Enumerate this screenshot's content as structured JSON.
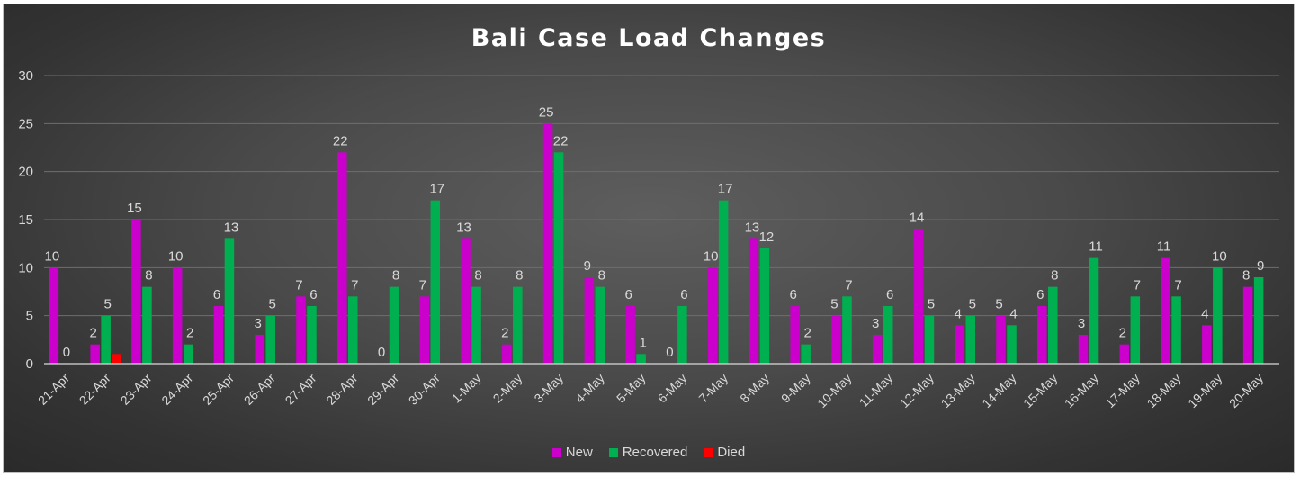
{
  "chart_data": {
    "type": "bar",
    "title": "Bali Case Load Changes",
    "xlabel": "",
    "ylabel": "",
    "ylim": [
      0,
      30
    ],
    "yticks": [
      0,
      5,
      10,
      15,
      20,
      25,
      30
    ],
    "grid": true,
    "legend_position": "bottom",
    "categories": [
      "21-Apr",
      "22-Apr",
      "23-Apr",
      "24-Apr",
      "25-Apr",
      "26-Apr",
      "27-Apr",
      "28-Apr",
      "29-Apr",
      "30-Apr",
      "1-May",
      "2-May",
      "3-May",
      "4-May",
      "5-May",
      "6-May",
      "7-May",
      "8-May",
      "9-May",
      "10-May",
      "11-May",
      "12-May",
      "13-May",
      "14-May",
      "15-May",
      "16-May",
      "17-May",
      "18-May",
      "19-May",
      "20-May"
    ],
    "series": [
      {
        "name": "New",
        "color": "#cc00cc",
        "values": [
          10,
          2,
          15,
          10,
          6,
          3,
          7,
          22,
          0,
          7,
          13,
          2,
          25,
          9,
          6,
          0,
          10,
          13,
          6,
          5,
          3,
          14,
          4,
          5,
          6,
          3,
          2,
          11,
          4,
          8
        ],
        "labels": [
          "10",
          "2",
          "15",
          "10",
          "6",
          "3",
          "7",
          "22",
          "0",
          "7",
          "13",
          "2",
          "25",
          "9",
          "6",
          "0",
          "10",
          "13",
          "6",
          "5",
          "3",
          "14",
          "4",
          "5",
          "6",
          "3",
          "2",
          "11",
          "4",
          "8"
        ]
      },
      {
        "name": "Recovered",
        "color": "#00b050",
        "values": [
          0,
          5,
          8,
          2,
          13,
          5,
          6,
          7,
          8,
          17,
          8,
          8,
          22,
          8,
          1,
          6,
          17,
          12,
          2,
          7,
          6,
          5,
          5,
          4,
          8,
          11,
          7,
          7,
          10,
          9
        ],
        "labels": [
          "0",
          "5",
          "8",
          "2",
          "13",
          "5",
          "6",
          "7",
          "8",
          "17",
          "8",
          "8",
          "22",
          "8",
          "1",
          "6",
          "17",
          "12",
          "2",
          "7",
          "6",
          "5",
          "5",
          "4",
          "8",
          "11",
          "7",
          "7",
          "10",
          "9"
        ]
      },
      {
        "name": "Died",
        "color": "#ff0000",
        "values": [
          0,
          1,
          0,
          0,
          0,
          0,
          0,
          0,
          0,
          0,
          0,
          0,
          0,
          0,
          0,
          0,
          0,
          0,
          0,
          0,
          0,
          0,
          0,
          0,
          0,
          0,
          0,
          0,
          0,
          0
        ],
        "labels": []
      }
    ]
  }
}
